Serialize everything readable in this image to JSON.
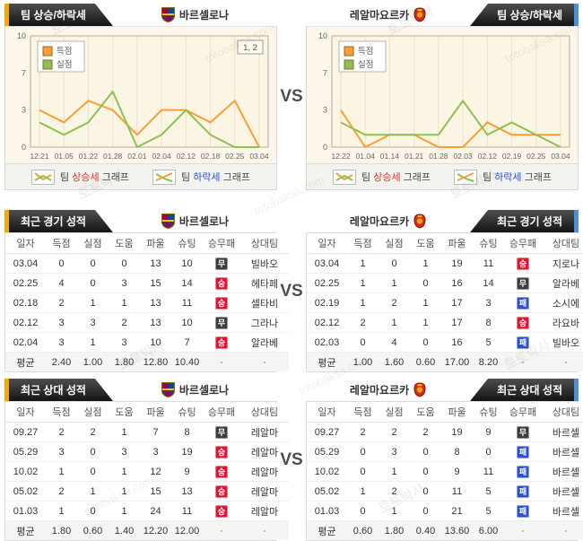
{
  "vs_label": "VS",
  "watermark": {
    "name": "토토박사",
    "site": "totobaksa.com"
  },
  "teams": {
    "home": "바르셀로나",
    "away": "레알마요르카"
  },
  "section_titles": {
    "trend": "팀 상승/하락세",
    "recent": "최근 경기 성적",
    "h2h": "최근 상대 성적"
  },
  "chart_note": {
    "up": {
      "prefix": "팀 ",
      "highlight": "상승세",
      "suffix": " 그래프"
    },
    "down": {
      "prefix": "팀 ",
      "highlight": "하락세",
      "suffix": " 그래프"
    }
  },
  "colors": {
    "accent_home": "#f5a800",
    "accent_away": "#4d8fd6",
    "line_score": "#ff9c33",
    "line_concede": "#8cc152",
    "win_badge": "#d8182f",
    "draw_badge": "#3d3d3d",
    "loss_badge": "#2b50c8"
  },
  "chart_data": [
    {
      "type": "line",
      "title": "바르셀로나 팀 상승/하락세",
      "x": [
        "12.21",
        "01.05",
        "01.22",
        "01.28",
        "02.01",
        "02.04",
        "02.12",
        "02.18",
        "02.25",
        "03.04"
      ],
      "yticks": [
        0,
        3,
        7,
        10
      ],
      "ylim": [
        0,
        10
      ],
      "grid": "vertical",
      "legend_position": "top-left",
      "annotation": "1, 2",
      "series": [
        {
          "name": "득점",
          "color": "#ff9c33",
          "values": [
            3,
            2,
            4,
            3,
            1,
            3,
            3,
            2,
            4,
            0
          ]
        },
        {
          "name": "실점",
          "color": "#8cc152",
          "values": [
            2,
            1,
            2,
            5,
            0,
            1,
            3,
            1,
            0,
            0
          ]
        }
      ]
    },
    {
      "type": "line",
      "title": "레알마요르카 팀 상승/하락세",
      "x": [
        "12.22",
        "01.04",
        "01.14",
        "01.21",
        "01.28",
        "02.03",
        "02.12",
        "02.19",
        "02.25",
        "03.04"
      ],
      "yticks": [
        0,
        3,
        7,
        10
      ],
      "ylim": [
        0,
        10
      ],
      "grid": "vertical",
      "legend_position": "top-left",
      "annotation": "",
      "series": [
        {
          "name": "득점",
          "color": "#ff9c33",
          "values": [
            3,
            0,
            1,
            1,
            0,
            0,
            2,
            1,
            1,
            1
          ]
        },
        {
          "name": "실점",
          "color": "#8cc152",
          "values": [
            2,
            1,
            1,
            1,
            1,
            4,
            1,
            2,
            1,
            0
          ]
        }
      ]
    }
  ],
  "tables": {
    "columns": [
      "일자",
      "득점",
      "실점",
      "도움",
      "파울",
      "슈팅",
      "승무패",
      "상대팀"
    ],
    "avg_label": "평균",
    "sections": [
      {
        "title": "최근 경기 성적",
        "team": "바르셀로나",
        "rows": [
          {
            "date": "03.04",
            "nums": [
              "0",
              "0",
              "0",
              "13",
              "10"
            ],
            "result": "draw",
            "result_label": "무",
            "opponent": "빌바오"
          },
          {
            "date": "02.25",
            "nums": [
              "4",
              "0",
              "3",
              "15",
              "14"
            ],
            "result": "win",
            "result_label": "승",
            "opponent": "헤타페"
          },
          {
            "date": "02.18",
            "nums": [
              "2",
              "1",
              "1",
              "13",
              "11"
            ],
            "result": "win",
            "result_label": "승",
            "opponent": "셀타비"
          },
          {
            "date": "02.12",
            "nums": [
              "3",
              "3",
              "2",
              "13",
              "10"
            ],
            "result": "draw",
            "result_label": "무",
            "opponent": "그라나"
          },
          {
            "date": "02.04",
            "nums": [
              "3",
              "1",
              "3",
              "10",
              "7"
            ],
            "result": "win",
            "result_label": "승",
            "opponent": "알라베"
          }
        ],
        "avg": [
          "2.40",
          "1.00",
          "1.80",
          "12.80",
          "10.40",
          "·",
          "·"
        ]
      },
      {
        "title": "최근 경기 성적",
        "team": "레알마요르카",
        "rows": [
          {
            "date": "03.04",
            "nums": [
              "1",
              "0",
              "1",
              "19",
              "11"
            ],
            "result": "win",
            "result_label": "승",
            "opponent": "지로나"
          },
          {
            "date": "02.25",
            "nums": [
              "1",
              "1",
              "0",
              "16",
              "14"
            ],
            "result": "draw",
            "result_label": "무",
            "opponent": "알라베"
          },
          {
            "date": "02.19",
            "nums": [
              "1",
              "2",
              "1",
              "17",
              "3"
            ],
            "result": "loss",
            "result_label": "패",
            "opponent": "소시에"
          },
          {
            "date": "02.12",
            "nums": [
              "2",
              "1",
              "1",
              "17",
              "8"
            ],
            "result": "win",
            "result_label": "승",
            "opponent": "라요바"
          },
          {
            "date": "02.03",
            "nums": [
              "0",
              "4",
              "0",
              "16",
              "5"
            ],
            "result": "loss",
            "result_label": "패",
            "opponent": "빌바오"
          }
        ],
        "avg": [
          "1.00",
          "1.60",
          "0.60",
          "17.00",
          "8.20",
          "·",
          "·"
        ]
      },
      {
        "title": "최근 상대 성적",
        "team": "바르셀로나",
        "rows": [
          {
            "date": "09.27",
            "nums": [
              "2",
              "2",
              "1",
              "7",
              "8"
            ],
            "result": "draw",
            "result_label": "무",
            "opponent": "레알마"
          },
          {
            "date": "05.29",
            "nums": [
              "3",
              "0",
              "3",
              "3",
              "19"
            ],
            "result": "win",
            "result_label": "승",
            "opponent": "레알마"
          },
          {
            "date": "10.02",
            "nums": [
              "1",
              "0",
              "1",
              "12",
              "9"
            ],
            "result": "win",
            "result_label": "승",
            "opponent": "레알마"
          },
          {
            "date": "05.02",
            "nums": [
              "2",
              "1",
              "1",
              "15",
              "13"
            ],
            "result": "win",
            "result_label": "승",
            "opponent": "레알마"
          },
          {
            "date": "01.03",
            "nums": [
              "1",
              "0",
              "1",
              "24",
              "11"
            ],
            "result": "win",
            "result_label": "승",
            "opponent": "레알마"
          }
        ],
        "avg": [
          "1.80",
          "0.60",
          "1.40",
          "12.20",
          "12.00",
          "·",
          "·"
        ]
      },
      {
        "title": "최근 상대 성적",
        "team": "레알마요르카",
        "rows": [
          {
            "date": "09.27",
            "nums": [
              "2",
              "2",
              "2",
              "19",
              "9"
            ],
            "result": "draw",
            "result_label": "무",
            "opponent": "바르셀"
          },
          {
            "date": "05.29",
            "nums": [
              "0",
              "3",
              "0",
              "8",
              "0"
            ],
            "result": "loss",
            "result_label": "패",
            "opponent": "바르셀"
          },
          {
            "date": "10.02",
            "nums": [
              "0",
              "1",
              "0",
              "9",
              "11"
            ],
            "result": "loss",
            "result_label": "패",
            "opponent": "바르셀"
          },
          {
            "date": "05.02",
            "nums": [
              "1",
              "2",
              "0",
              "11",
              "5"
            ],
            "result": "loss",
            "result_label": "패",
            "opponent": "바르셀"
          },
          {
            "date": "01.03",
            "nums": [
              "0",
              "1",
              "0",
              "21",
              "5"
            ],
            "result": "loss",
            "result_label": "패",
            "opponent": "바르셀"
          }
        ],
        "avg": [
          "0.60",
          "1.80",
          "0.40",
          "13.60",
          "6.00",
          "·",
          "·"
        ]
      }
    ]
  }
}
